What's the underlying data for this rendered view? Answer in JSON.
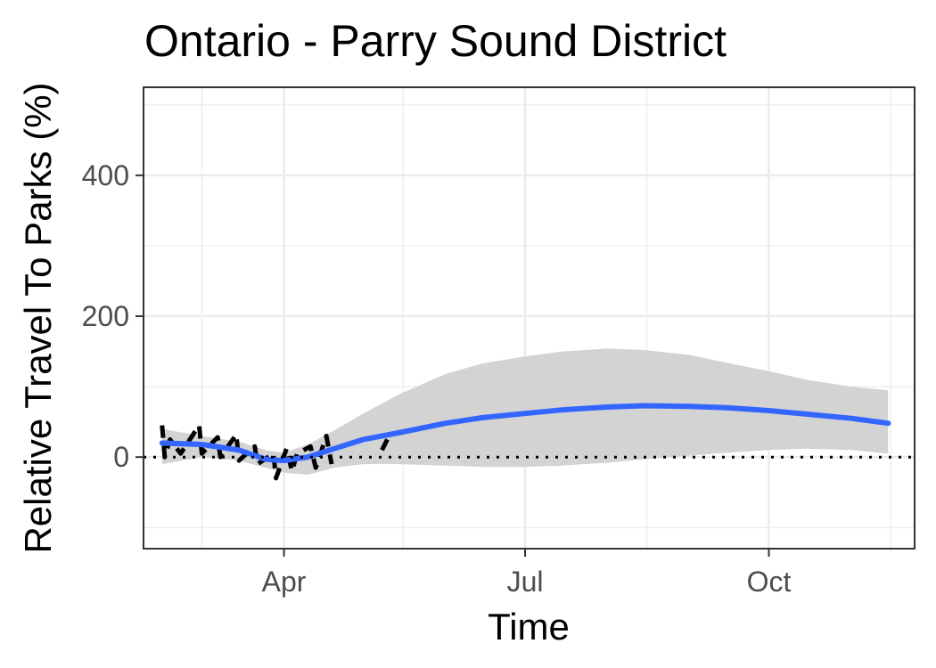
{
  "chart_data": {
    "type": "line",
    "title": "Ontario - Parry Sound District",
    "xlabel": "Time",
    "ylabel": "Relative Travel To Parks (%)",
    "x_is_date": true,
    "year": 2020,
    "xlim": [
      "2020-02-08",
      "2020-11-25"
    ],
    "ylim": [
      -130,
      525
    ],
    "x_ticks": [
      {
        "date": "2020-04-01",
        "label": "Apr"
      },
      {
        "date": "2020-07-01",
        "label": "Jul"
      },
      {
        "date": "2020-10-01",
        "label": "Oct"
      }
    ],
    "x_minor_ticks": [
      "2020-03-01",
      "2020-05-16",
      "2020-08-16",
      "2020-11-16"
    ],
    "y_ticks": [
      0,
      200,
      400
    ],
    "y_minor_ticks": [
      -100,
      100,
      300,
      500
    ],
    "grid": true,
    "reference_line": {
      "y": 0,
      "style": "dotted"
    },
    "series": [
      {
        "kind": "observed",
        "style": "dashed",
        "color": "#000000",
        "points": [
          {
            "date": "2020-02-15",
            "y": 45
          },
          {
            "date": "2020-02-16",
            "y": 0
          },
          {
            "date": "2020-02-18",
            "y": 25
          },
          {
            "date": "2020-02-22",
            "y": 5
          },
          {
            "date": "2020-02-29",
            "y": 45
          },
          {
            "date": "2020-03-01",
            "y": 5
          },
          {
            "date": "2020-03-07",
            "y": 28
          },
          {
            "date": "2020-03-08",
            "y": 0
          },
          {
            "date": "2020-03-14",
            "y": 32
          },
          {
            "date": "2020-03-15",
            "y": -5
          },
          {
            "date": "2020-03-21",
            "y": 15
          },
          {
            "date": "2020-03-22",
            "y": -10
          },
          {
            "date": "2020-03-28",
            "y": 5
          },
          {
            "date": "2020-03-29",
            "y": -30
          },
          {
            "date": "2020-04-02",
            "y": 12
          },
          {
            "date": "2020-04-04",
            "y": -20
          },
          {
            "date": "2020-04-06",
            "y": 5
          },
          {
            "date": "2020-04-11",
            "y": 15
          },
          {
            "date": "2020-04-13",
            "y": -15
          },
          {
            "date": "2020-04-17",
            "y": 30
          },
          {
            "date": "2020-04-19",
            "y": -10
          }
        ]
      },
      {
        "kind": "observed-tail",
        "style": "dashed",
        "color": "#000000",
        "points": [
          {
            "date": "2020-05-08",
            "y": 10
          },
          {
            "date": "2020-05-10",
            "y": 25
          }
        ]
      }
    ],
    "trend": {
      "color": "#3366ff",
      "points": [
        {
          "date": "2020-02-15",
          "y": 20
        },
        {
          "date": "2020-03-01",
          "y": 18
        },
        {
          "date": "2020-03-15",
          "y": 10
        },
        {
          "date": "2020-03-25",
          "y": -3
        },
        {
          "date": "2020-04-01",
          "y": -5
        },
        {
          "date": "2020-04-10",
          "y": 0
        },
        {
          "date": "2020-04-20",
          "y": 12
        },
        {
          "date": "2020-05-01",
          "y": 25
        },
        {
          "date": "2020-05-15",
          "y": 35
        },
        {
          "date": "2020-06-01",
          "y": 48
        },
        {
          "date": "2020-06-15",
          "y": 56
        },
        {
          "date": "2020-07-01",
          "y": 62
        },
        {
          "date": "2020-07-15",
          "y": 67
        },
        {
          "date": "2020-08-01",
          "y": 71
        },
        {
          "date": "2020-08-15",
          "y": 73
        },
        {
          "date": "2020-09-01",
          "y": 72
        },
        {
          "date": "2020-09-15",
          "y": 70
        },
        {
          "date": "2020-10-01",
          "y": 66
        },
        {
          "date": "2020-10-15",
          "y": 61
        },
        {
          "date": "2020-11-01",
          "y": 55
        },
        {
          "date": "2020-11-15",
          "y": 48
        }
      ]
    },
    "confidence_band": {
      "color": "#d3d3d3",
      "points": [
        {
          "date": "2020-02-15",
          "lo": -10,
          "hi": 40
        },
        {
          "date": "2020-03-01",
          "lo": 0,
          "hi": 30
        },
        {
          "date": "2020-03-15",
          "lo": -5,
          "hi": 22
        },
        {
          "date": "2020-03-25",
          "lo": -15,
          "hi": 10
        },
        {
          "date": "2020-04-01",
          "lo": -22,
          "hi": 6
        },
        {
          "date": "2020-04-10",
          "lo": -25,
          "hi": 18
        },
        {
          "date": "2020-04-20",
          "lo": -15,
          "hi": 38
        },
        {
          "date": "2020-05-01",
          "lo": -10,
          "hi": 62
        },
        {
          "date": "2020-05-15",
          "lo": -10,
          "hi": 90
        },
        {
          "date": "2020-06-01",
          "lo": -12,
          "hi": 118
        },
        {
          "date": "2020-06-15",
          "lo": -14,
          "hi": 133
        },
        {
          "date": "2020-07-01",
          "lo": -14,
          "hi": 143
        },
        {
          "date": "2020-07-15",
          "lo": -12,
          "hi": 150
        },
        {
          "date": "2020-08-01",
          "lo": -8,
          "hi": 154
        },
        {
          "date": "2020-08-15",
          "lo": -3,
          "hi": 152
        },
        {
          "date": "2020-09-01",
          "lo": 2,
          "hi": 145
        },
        {
          "date": "2020-09-15",
          "lo": 6,
          "hi": 134
        },
        {
          "date": "2020-10-01",
          "lo": 10,
          "hi": 122
        },
        {
          "date": "2020-10-15",
          "lo": 12,
          "hi": 110
        },
        {
          "date": "2020-11-01",
          "lo": 10,
          "hi": 100
        },
        {
          "date": "2020-11-15",
          "lo": 5,
          "hi": 95
        }
      ]
    }
  }
}
